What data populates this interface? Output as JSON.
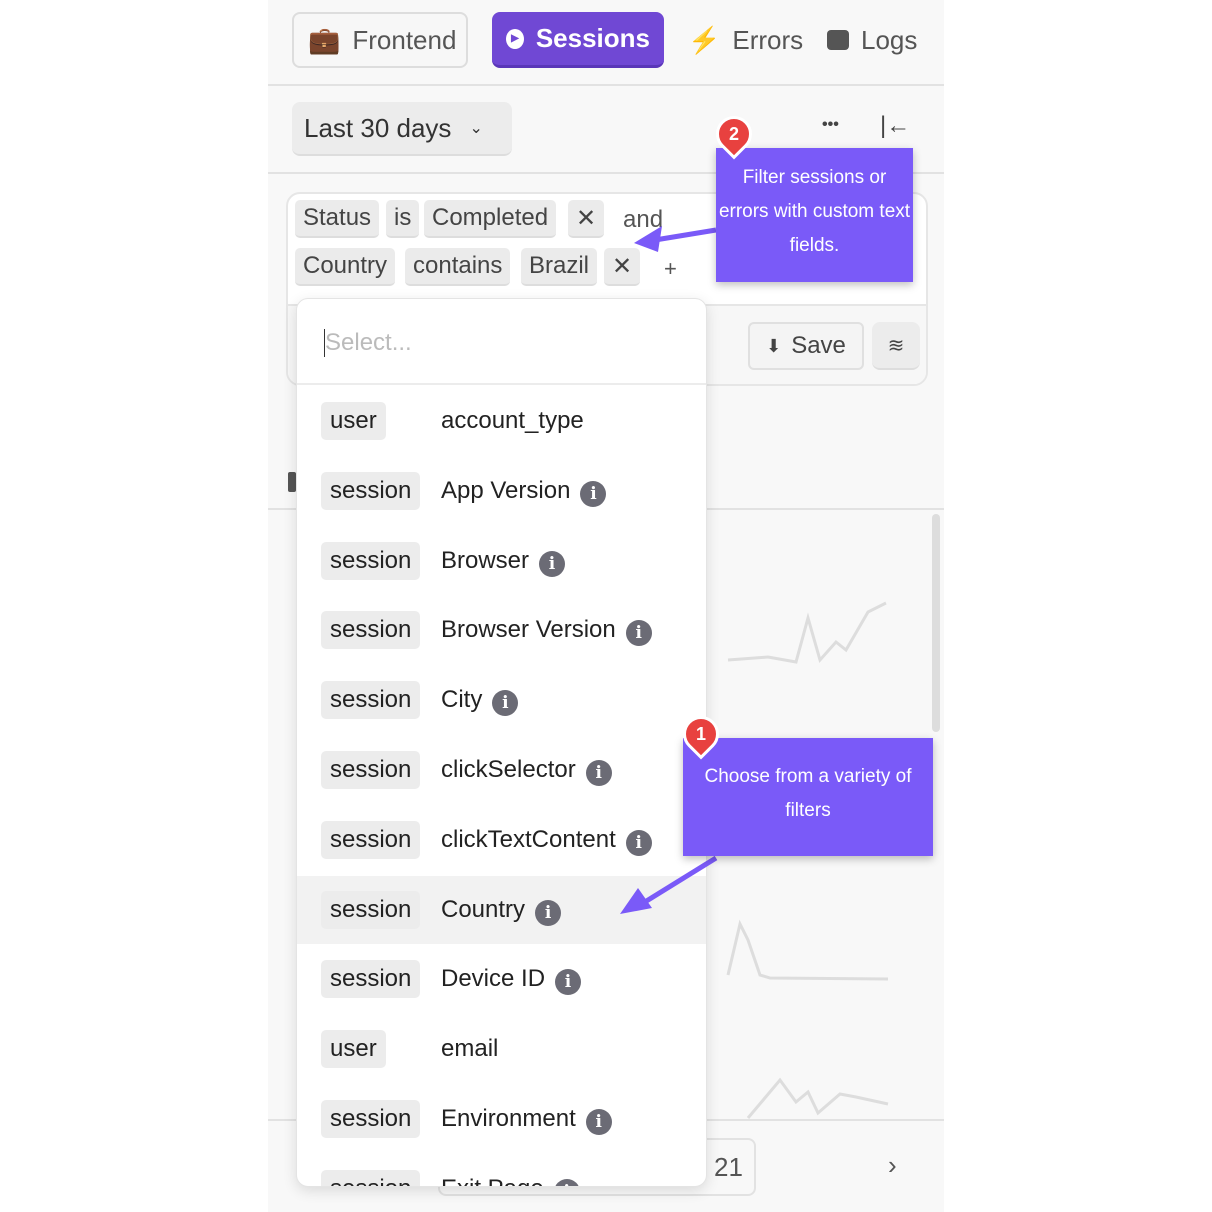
{
  "tabs": [
    {
      "label": "Frontend",
      "icon": "briefcase-icon"
    },
    {
      "label": "Sessions",
      "icon": "play-circle-icon",
      "active": true
    },
    {
      "label": "Errors",
      "icon": "bolt-icon"
    },
    {
      "label": "Logs",
      "icon": "log-icon"
    }
  ],
  "toolbar": {
    "date_range": "Last 30 days",
    "more": "•••"
  },
  "filters": {
    "row1": {
      "field": "Status",
      "op": "is",
      "value": "Completed"
    },
    "joiner": "and",
    "row2": {
      "field": "Country",
      "op": "contains",
      "value": "Brazil"
    },
    "add": "+",
    "remove": "✕"
  },
  "save_label": "Save",
  "dropdown": {
    "placeholder": "Select...",
    "items": [
      {
        "kind": "user",
        "name": "account_type",
        "info": false
      },
      {
        "kind": "session",
        "name": "App Version",
        "info": true
      },
      {
        "kind": "session",
        "name": "Browser",
        "info": true
      },
      {
        "kind": "session",
        "name": "Browser Version",
        "info": true
      },
      {
        "kind": "session",
        "name": "City",
        "info": true
      },
      {
        "kind": "session",
        "name": "clickSelector",
        "info": true
      },
      {
        "kind": "session",
        "name": "clickTextContent",
        "info": true
      },
      {
        "kind": "session",
        "name": "Country",
        "info": true,
        "highlighted": true
      },
      {
        "kind": "session",
        "name": "Device ID",
        "info": true
      },
      {
        "kind": "user",
        "name": "email",
        "info": false
      },
      {
        "kind": "session",
        "name": "Environment",
        "info": true
      },
      {
        "kind": "session",
        "name": "Exit Page",
        "info": true
      }
    ]
  },
  "pagination": {
    "page": "21",
    "next": "›"
  },
  "tooltips": [
    {
      "number": "2",
      "text": "Filter sessions or errors with custom text fields."
    },
    {
      "number": "1",
      "text": "Choose from a variety of filters"
    }
  ],
  "colors": {
    "accent": "#7048d4",
    "tooltip": "#7a5af8",
    "pin": "#e8413f"
  }
}
